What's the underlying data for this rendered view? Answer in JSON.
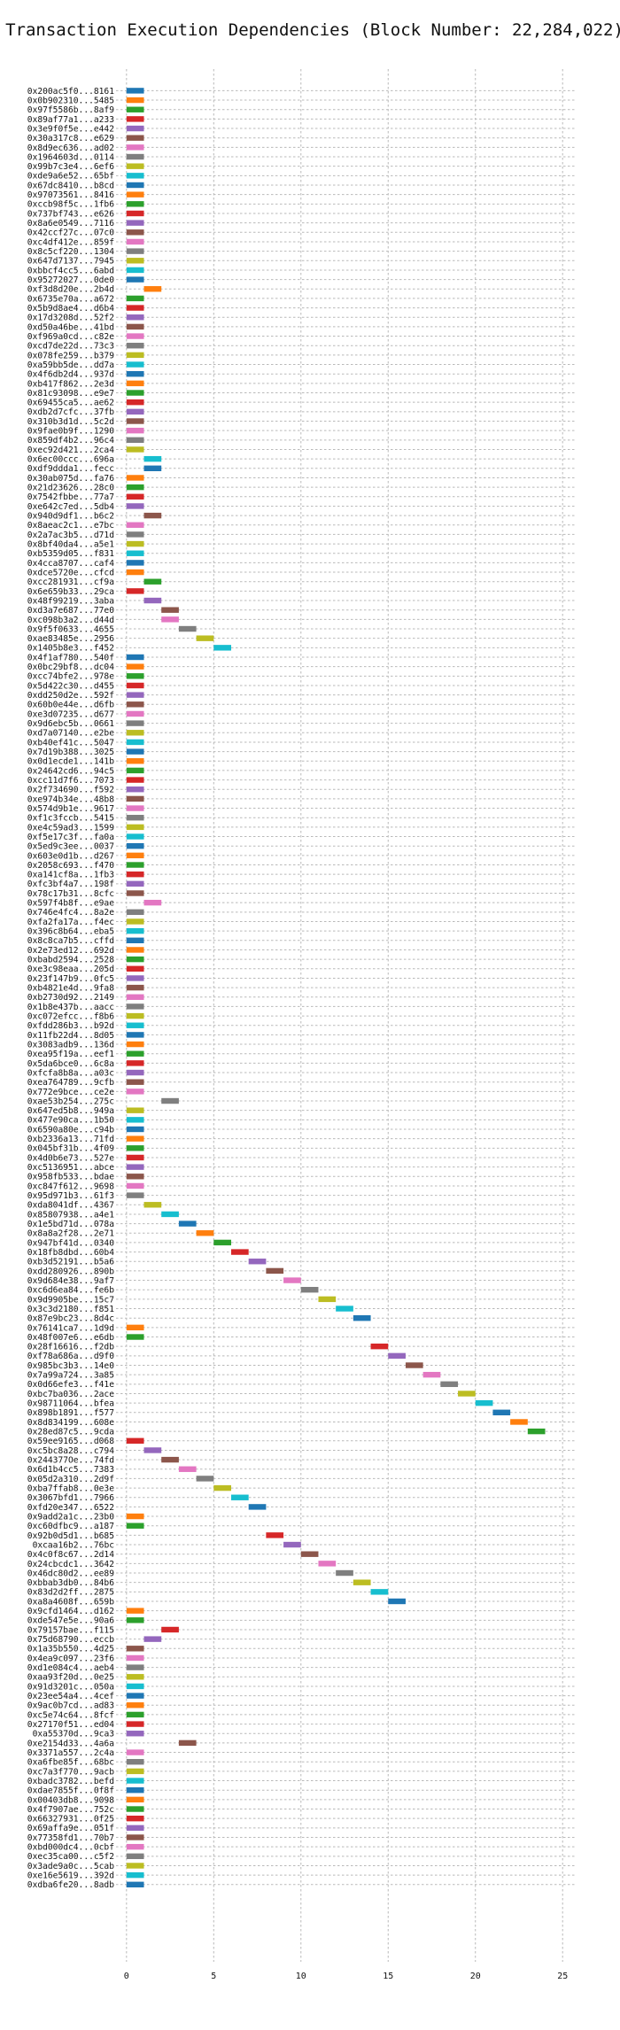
{
  "chart_data": {
    "type": "gantt",
    "title": "Transaction Execution Dependencies (Block Number: 22,284,022)",
    "xlabel": "",
    "ylabel": "",
    "xlim": [
      -0.6,
      25.7
    ],
    "xticks": [
      0,
      5,
      10,
      15,
      20,
      25
    ],
    "grid": true,
    "palette": [
      "#1f77b4",
      "#ff7f0e",
      "#2ca02c",
      "#d62728",
      "#9467bd",
      "#8c564b",
      "#e377c2",
      "#7f7f7f",
      "#bcbd22",
      "#17becf"
    ],
    "transactions": [
      {
        "label": "0x200ac5f0...8161",
        "start": 0
      },
      {
        "label": "0x0b902310...5485",
        "start": 0
      },
      {
        "label": "0x97f5586b...8af9",
        "start": 0
      },
      {
        "label": "0x89af77a1...a233",
        "start": 0
      },
      {
        "label": "0x3e9f0f5e...e442",
        "start": 0
      },
      {
        "label": "0x30a317c8...e629",
        "start": 0
      },
      {
        "label": "0x8d9ec636...ad02",
        "start": 0
      },
      {
        "label": "0x1964603d...0114",
        "start": 0
      },
      {
        "label": "0x99b7c3e4...6ef6",
        "start": 0
      },
      {
        "label": "0xde9a6e52...65bf",
        "start": 0
      },
      {
        "label": "0x67dc8410...b8cd",
        "start": 0
      },
      {
        "label": "0x97073561...8416",
        "start": 0
      },
      {
        "label": "0xccb98f5c...1fb6",
        "start": 0
      },
      {
        "label": "0x737bf743...e626",
        "start": 0
      },
      {
        "label": "0x8a6e0549...7116",
        "start": 0
      },
      {
        "label": "0x42ccf27c...07c0",
        "start": 0
      },
      {
        "label": "0xc4df412e...859f",
        "start": 0
      },
      {
        "label": "0x8c5cf220...1304",
        "start": 0
      },
      {
        "label": "0x647d7137...7945",
        "start": 0
      },
      {
        "label": "0xbbcf4cc5...6abd",
        "start": 0
      },
      {
        "label": "0x95272027...0de0",
        "start": 0
      },
      {
        "label": "0xf3d8d20e...2b4d",
        "start": 1
      },
      {
        "label": "0x6735e70a...a672",
        "start": 0
      },
      {
        "label": "0x5b9d8ae4...d6b4",
        "start": 0
      },
      {
        "label": "0x17d3208d...52f2",
        "start": 0
      },
      {
        "label": "0xd50a46be...41bd",
        "start": 0
      },
      {
        "label": "0xf969a0cd...c82e",
        "start": 0
      },
      {
        "label": "0xcd7de22d...73c3",
        "start": 0
      },
      {
        "label": "0x078fe259...b379",
        "start": 0
      },
      {
        "label": "0xa59bb5de...dd7a",
        "start": 0
      },
      {
        "label": "0x4f6db2d4...937d",
        "start": 0
      },
      {
        "label": "0xb417f862...2e3d",
        "start": 0
      },
      {
        "label": "0x81c93098...e9e7",
        "start": 0
      },
      {
        "label": "0x69455ca5...ae62",
        "start": 0
      },
      {
        "label": "0xdb2d7cfc...37fb",
        "start": 0
      },
      {
        "label": "0x310b3d1d...5c2d",
        "start": 0
      },
      {
        "label": "0x9fae0b9f...1290",
        "start": 0
      },
      {
        "label": "0x859df4b2...96c4",
        "start": 0
      },
      {
        "label": "0xec92d421...2ca4",
        "start": 0
      },
      {
        "label": "0x6ec00ccc...696a",
        "start": 1
      },
      {
        "label": "0xdf9ddda1...fecc",
        "start": 1
      },
      {
        "label": "0x30ab075d...fa76",
        "start": 0
      },
      {
        "label": "0x21d23626...28c0",
        "start": 0
      },
      {
        "label": "0x7542fbbe...77a7",
        "start": 0
      },
      {
        "label": "0xe642c7ed...5db4",
        "start": 0
      },
      {
        "label": "0x940d9df1...b6c2",
        "start": 1
      },
      {
        "label": "0x8aeac2c1...e7bc",
        "start": 0
      },
      {
        "label": "0x2a7ac3b5...d71d",
        "start": 0
      },
      {
        "label": "0x8bf40da4...a5e1",
        "start": 0
      },
      {
        "label": "0xb5359d05...f831",
        "start": 0
      },
      {
        "label": "0x4cca8707...caf4",
        "start": 0
      },
      {
        "label": "0xdce5720e...cfcd",
        "start": 0
      },
      {
        "label": "0xcc281931...cf9a",
        "start": 1
      },
      {
        "label": "0x6e659b33...29ca",
        "start": 0
      },
      {
        "label": "0x48f99219...3aba",
        "start": 1
      },
      {
        "label": "0xd3a7e687...77e0",
        "start": 2
      },
      {
        "label": "0xc098b3a2...d44d",
        "start": 2
      },
      {
        "label": "0x9f5f0633...4655",
        "start": 3
      },
      {
        "label": "0xae83485e...2956",
        "start": 4
      },
      {
        "label": "0x1405b8e3...f452",
        "start": 5
      },
      {
        "label": "0x4f1af780...540f",
        "start": 0
      },
      {
        "label": "0x0bc29bf8...dc04",
        "start": 0
      },
      {
        "label": "0xcc74bfe2...978e",
        "start": 0
      },
      {
        "label": "0x5d422c30...d455",
        "start": 0
      },
      {
        "label": "0xdd250d2e...592f",
        "start": 0
      },
      {
        "label": "0x60b0e44e...d6fb",
        "start": 0
      },
      {
        "label": "0xe3d07235...d677",
        "start": 0
      },
      {
        "label": "0x9d6ebc5b...0661",
        "start": 0
      },
      {
        "label": "0xd7a07140...e2be",
        "start": 0
      },
      {
        "label": "0xb40ef41c...5047",
        "start": 0
      },
      {
        "label": "0x7d19b388...3025",
        "start": 0
      },
      {
        "label": "0x0d1ecde1...141b",
        "start": 0
      },
      {
        "label": "0x24642cd6...94c5",
        "start": 0
      },
      {
        "label": "0xcc11d7f6...7073",
        "start": 0
      },
      {
        "label": "0x2f734690...f592",
        "start": 0
      },
      {
        "label": "0xe974b34e...48b8",
        "start": 0
      },
      {
        "label": "0x574d9b1e...9617",
        "start": 0
      },
      {
        "label": "0xf1c3fccb...5415",
        "start": 0
      },
      {
        "label": "0xe4c59ad3...1599",
        "start": 0
      },
      {
        "label": "0xf5e17c3f...fa0a",
        "start": 0
      },
      {
        "label": "0x5ed9c3ee...0037",
        "start": 0
      },
      {
        "label": "0x603e0d1b...d267",
        "start": 0
      },
      {
        "label": "0x2058c693...f470",
        "start": 0
      },
      {
        "label": "0xa141cf8a...1fb3",
        "start": 0
      },
      {
        "label": "0xfc3bf4a7...198f",
        "start": 0
      },
      {
        "label": "0x78c17b31...8cfc",
        "start": 0
      },
      {
        "label": "0x597f4b8f...e9ae",
        "start": 1
      },
      {
        "label": "0x746e4fc4...8a2e",
        "start": 0
      },
      {
        "label": "0xfa2fa17a...f4ec",
        "start": 0
      },
      {
        "label": "0x396c8b64...eba5",
        "start": 0
      },
      {
        "label": "0x8c8ca7b5...cffd",
        "start": 0
      },
      {
        "label": "0x2e73ed12...692d",
        "start": 0
      },
      {
        "label": "0xbabd2594...2528",
        "start": 0
      },
      {
        "label": "0xe3c98eaa...205d",
        "start": 0
      },
      {
        "label": "0x23f147b9...0fc5",
        "start": 0
      },
      {
        "label": "0xb4821e4d...9fa8",
        "start": 0
      },
      {
        "label": "0xb2730d92...2149",
        "start": 0
      },
      {
        "label": "0x1b8e437b...aacc",
        "start": 0
      },
      {
        "label": "0xc072efcc...f8b6",
        "start": 0
      },
      {
        "label": "0xfdd286b3...b92d",
        "start": 0
      },
      {
        "label": "0x11fb22d4...8d05",
        "start": 0
      },
      {
        "label": "0x3083adb9...136d",
        "start": 0
      },
      {
        "label": "0xea95f19a...eef1",
        "start": 0
      },
      {
        "label": "0x5da6bce0...6c8a",
        "start": 0
      },
      {
        "label": "0xfcfa8b8a...a03c",
        "start": 0
      },
      {
        "label": "0xea764789...9cfb",
        "start": 0
      },
      {
        "label": "0x772e9bce...ce2e",
        "start": 0
      },
      {
        "label": "0xae53b254...275c",
        "start": 2
      },
      {
        "label": "0x647ed5b8...949a",
        "start": 0
      },
      {
        "label": "0x477e90ca...1b50",
        "start": 0
      },
      {
        "label": "0x6590a80e...c94b",
        "start": 0
      },
      {
        "label": "0xb2336a13...71fd",
        "start": 0
      },
      {
        "label": "0x045bf31b...4f09",
        "start": 0
      },
      {
        "label": "0x4d0b6e73...527e",
        "start": 0
      },
      {
        "label": "0xc5136951...abce",
        "start": 0
      },
      {
        "label": "0x958fb533...bdae",
        "start": 0
      },
      {
        "label": "0xc847f612...9698",
        "start": 0
      },
      {
        "label": "0x95d971b3...61f3",
        "start": 0
      },
      {
        "label": "0xda8041df...4367",
        "start": 1
      },
      {
        "label": "0x85807938...a4e1",
        "start": 2
      },
      {
        "label": "0x1e5bd71d...078a",
        "start": 3
      },
      {
        "label": "0x8a8a2f28...2e71",
        "start": 4
      },
      {
        "label": "0x947bf41d...0340",
        "start": 5
      },
      {
        "label": "0x18fb8dbd...60b4",
        "start": 6
      },
      {
        "label": "0xb3d52191...b5a6",
        "start": 7
      },
      {
        "label": "0xdd280926...890b",
        "start": 8
      },
      {
        "label": "0x9d684e38...9af7",
        "start": 9
      },
      {
        "label": "0xc6d6ea84...fe6b",
        "start": 10
      },
      {
        "label": "0x9d9905be...15c7",
        "start": 11
      },
      {
        "label": "0x3c3d2180...f851",
        "start": 12
      },
      {
        "label": "0x87e9bc23...8d4c",
        "start": 13
      },
      {
        "label": "0x76141ca7...1d9d",
        "start": 0
      },
      {
        "label": "0x48f007e6...e6db",
        "start": 0
      },
      {
        "label": "0x28f16616...f2db",
        "start": 14
      },
      {
        "label": "0xf78a686a...d9f0",
        "start": 15
      },
      {
        "label": "0x985bc3b3...14e0",
        "start": 16
      },
      {
        "label": "0x7a99a724...3a85",
        "start": 17
      },
      {
        "label": "0x0d66efe3...f41e",
        "start": 18
      },
      {
        "label": "0xbc7ba036...2ace",
        "start": 19
      },
      {
        "label": "0x98711064...bfea",
        "start": 20
      },
      {
        "label": "0x898b1891...f577",
        "start": 21
      },
      {
        "label": "0x8d834199...608e",
        "start": 22
      },
      {
        "label": "0x28ed87c5...9cda",
        "start": 23
      },
      {
        "label": "0x59ee9165...d068",
        "start": 0
      },
      {
        "label": "0xc5bc8a28...c794",
        "start": 1
      },
      {
        "label": "0x244377Oe...74fd",
        "start": 2
      },
      {
        "label": "0x6d1b4cc5...7383",
        "start": 3
      },
      {
        "label": "0x05d2a310...2d9f",
        "start": 4
      },
      {
        "label": "0xba7ffab8...0e3e",
        "start": 5
      },
      {
        "label": "0x3067bfd1...7966",
        "start": 6
      },
      {
        "label": "0xfd20e347...6522",
        "start": 7
      },
      {
        "label": "0x9add2a1c...23b0",
        "start": 0
      },
      {
        "label": "0xc60dfbc9...a187",
        "start": 0
      },
      {
        "label": "0x92b0d5d1...b685",
        "start": 8
      },
      {
        "label": "0xcaa16b2...76bc",
        "start": 9
      },
      {
        "label": "0x4c0f8c67...2d14",
        "start": 10
      },
      {
        "label": "0x24cbcdc1...3642",
        "start": 11
      },
      {
        "label": "0x46dc80d2...ee89",
        "start": 12
      },
      {
        "label": "0xbbab3db0...84b6",
        "start": 13
      },
      {
        "label": "0x83d2d2ff...2875",
        "start": 14
      },
      {
        "label": "0xa8a4608f...659b",
        "start": 15
      },
      {
        "label": "0x9cfd1464...d162",
        "start": 0
      },
      {
        "label": "0xde547e5e...90a6",
        "start": 0
      },
      {
        "label": "0x79157bae...f115",
        "start": 2
      },
      {
        "label": "0x75d68790...eccb",
        "start": 1
      },
      {
        "label": "0x1a35b550...4d25",
        "start": 0
      },
      {
        "label": "0x4ea9c097...23f6",
        "start": 0
      },
      {
        "label": "0xd1e084c4...aeb4",
        "start": 0
      },
      {
        "label": "0xaa93f20d...0e25",
        "start": 0
      },
      {
        "label": "0x91d3201c...050a",
        "start": 0
      },
      {
        "label": "0x23ee54a4...4cef",
        "start": 0
      },
      {
        "label": "0x9ac0b7cd...ad83",
        "start": 0
      },
      {
        "label": "0xc5e74c64...8fcf",
        "start": 0
      },
      {
        "label": "0x27170f51...ed04",
        "start": 0
      },
      {
        "label": "0xa55370d...9ca3",
        "start": 0
      },
      {
        "label": "0xe2154d33...4a6a",
        "start": 3
      },
      {
        "label": "0x3371a557...2c4a",
        "start": 0
      },
      {
        "label": "0xa6fbe85f...68bc",
        "start": 0
      },
      {
        "label": "0xc7a3f770...9acb",
        "start": 0
      },
      {
        "label": "0xbadc3782...befd",
        "start": 0
      },
      {
        "label": "0xdae7855f...0f8f",
        "start": 0
      },
      {
        "label": "0x00403db8...9098",
        "start": 0
      },
      {
        "label": "0x4f7907ae...752c",
        "start": 0
      },
      {
        "label": "0x66327931...0f25",
        "start": 0
      },
      {
        "label": "0x69affa9e...051f",
        "start": 0
      },
      {
        "label": "0x77358fd1...70b7",
        "start": 0
      },
      {
        "label": "0xbd000dc4...0cbf",
        "start": 0
      },
      {
        "label": "0xec35ca00...c5f2",
        "start": 0
      },
      {
        "label": "0x3ade9a0c...5cab",
        "start": 0
      },
      {
        "label": "0xe16e5619...392d",
        "start": 0
      },
      {
        "label": "0xdba6fe20...8adb",
        "start": 0
      }
    ]
  }
}
